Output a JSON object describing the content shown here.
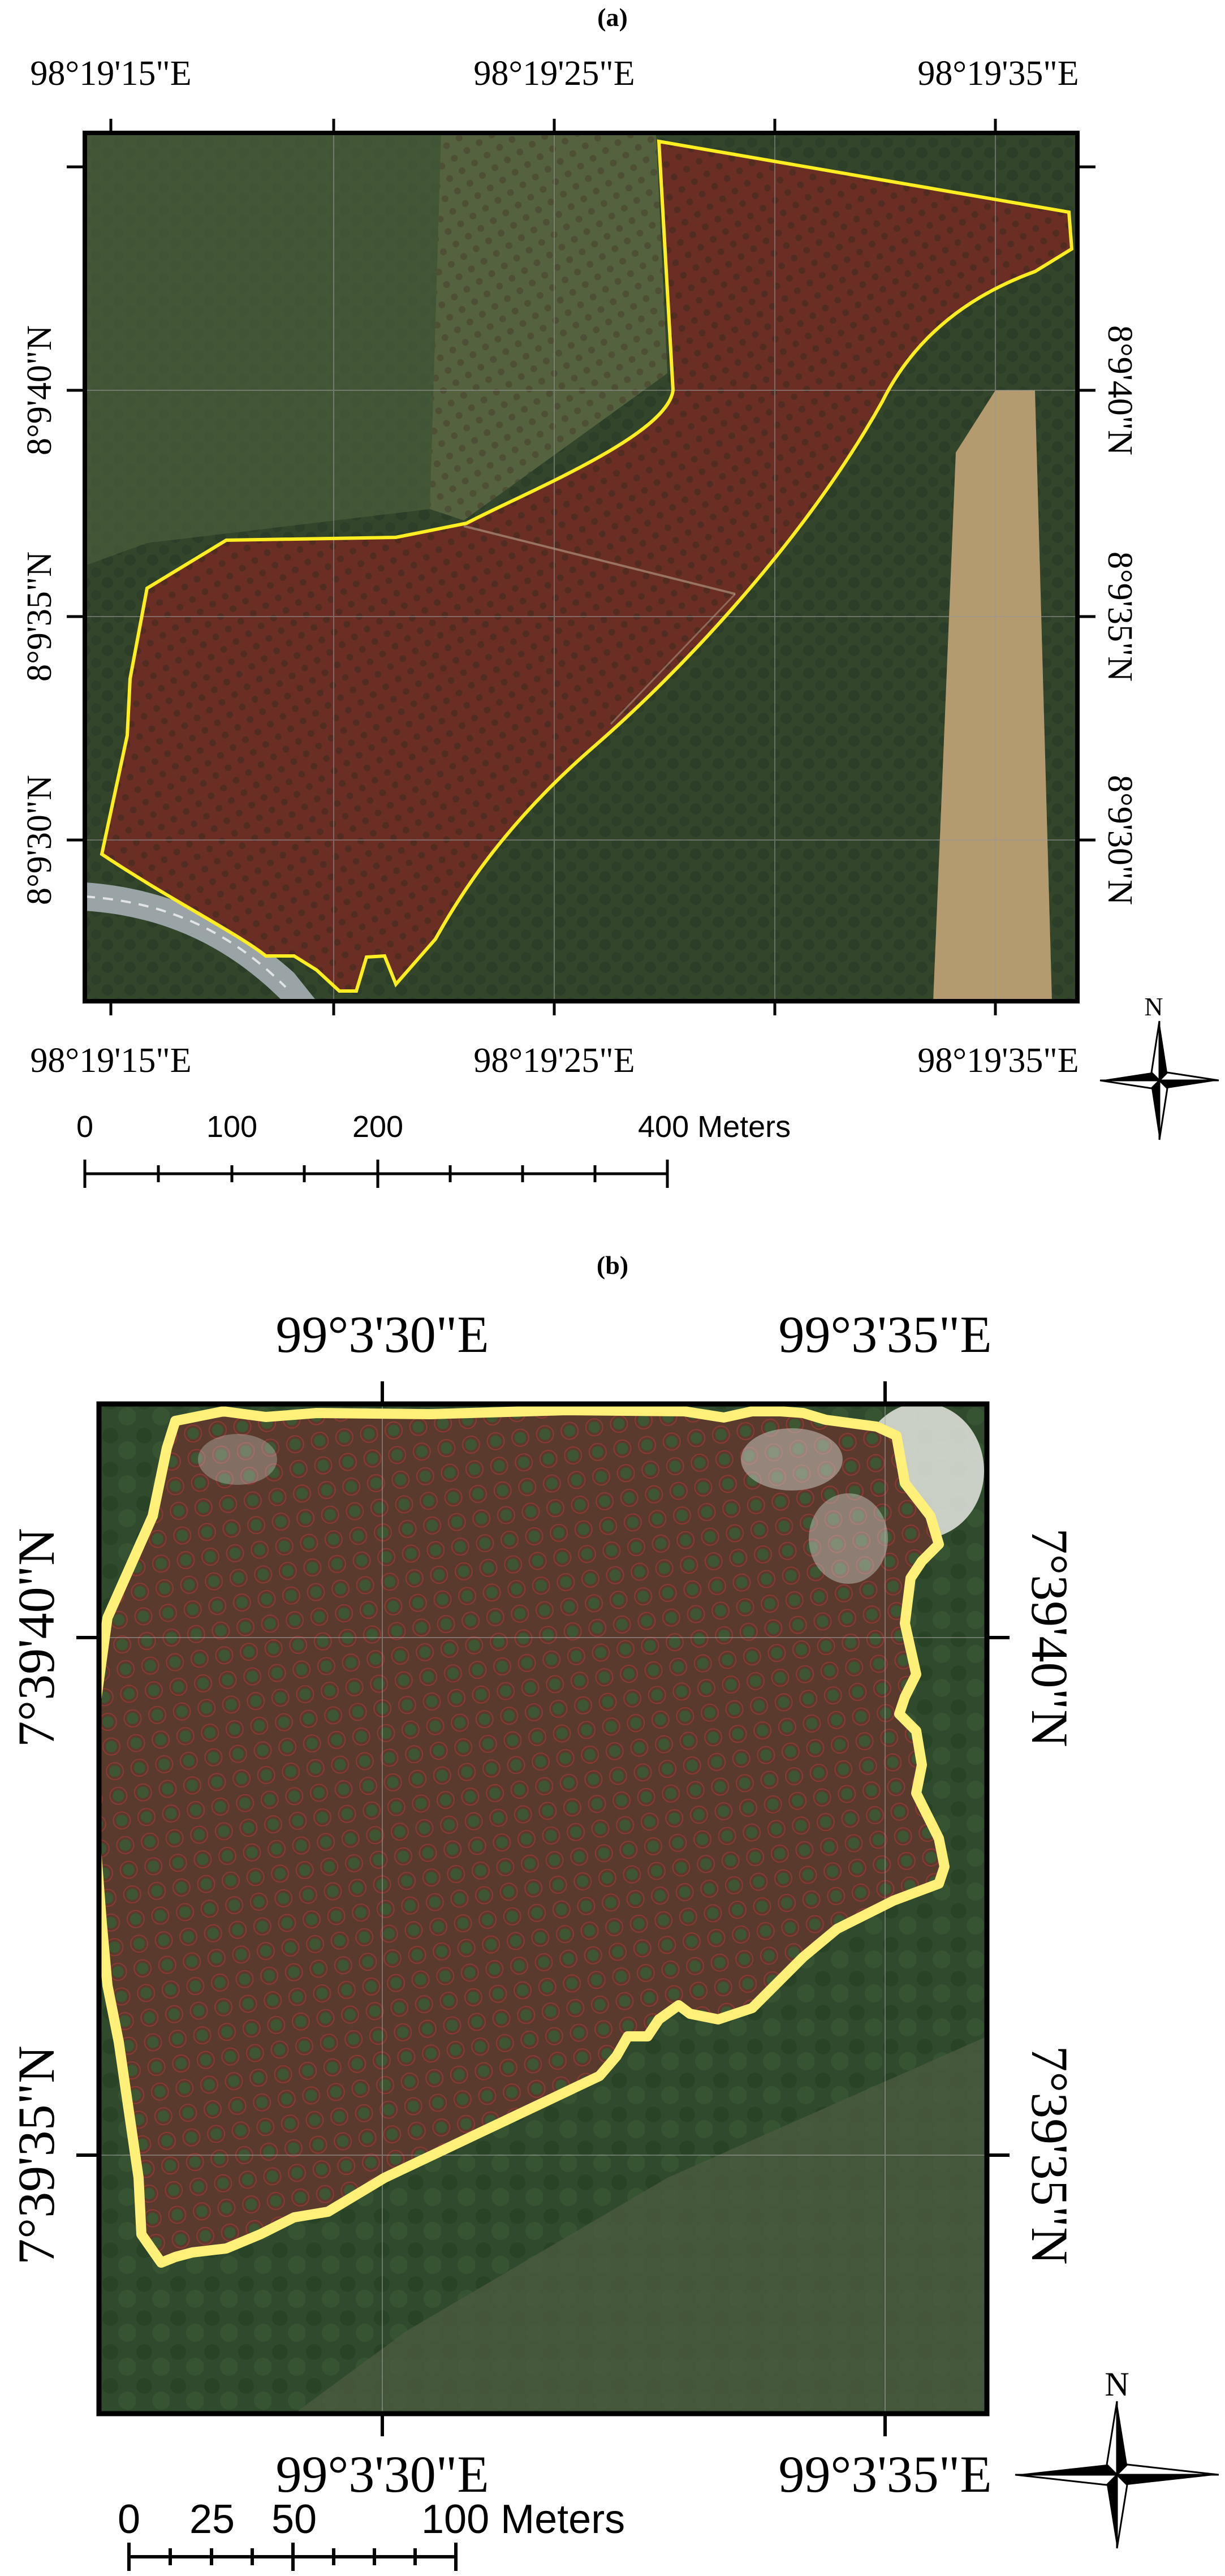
{
  "panel_a": {
    "label": "(a)",
    "lon_labels": [
      "98°19'15\"E",
      "98°19'25\"E",
      "98°19'35\"E"
    ],
    "lat_labels": [
      "8°9'40\"N",
      "8°9'35\"N",
      "8°9'30\"N"
    ],
    "scale_labels": [
      "0",
      "100",
      "200",
      "400 Meters"
    ],
    "north_label": "N",
    "colors": {
      "boundary": "#ffee22",
      "plantation": "#6b2e25",
      "forest": "#33462c",
      "road": "#9aa3a6"
    }
  },
  "panel_b": {
    "label": "(b)",
    "lon_labels": [
      "99°3'30\"E",
      "99°3'35\"E"
    ],
    "lat_labels": [
      "7°39'40\"N",
      "7°39'35\"N"
    ],
    "scale_labels": [
      "0",
      "25",
      "50",
      "100 Meters"
    ],
    "north_label": "N",
    "colors": {
      "boundary": "#fff07a",
      "plantation": "#5a3a2c",
      "forest": "#2f4a2c",
      "cleared": "#cfd0c8"
    }
  }
}
